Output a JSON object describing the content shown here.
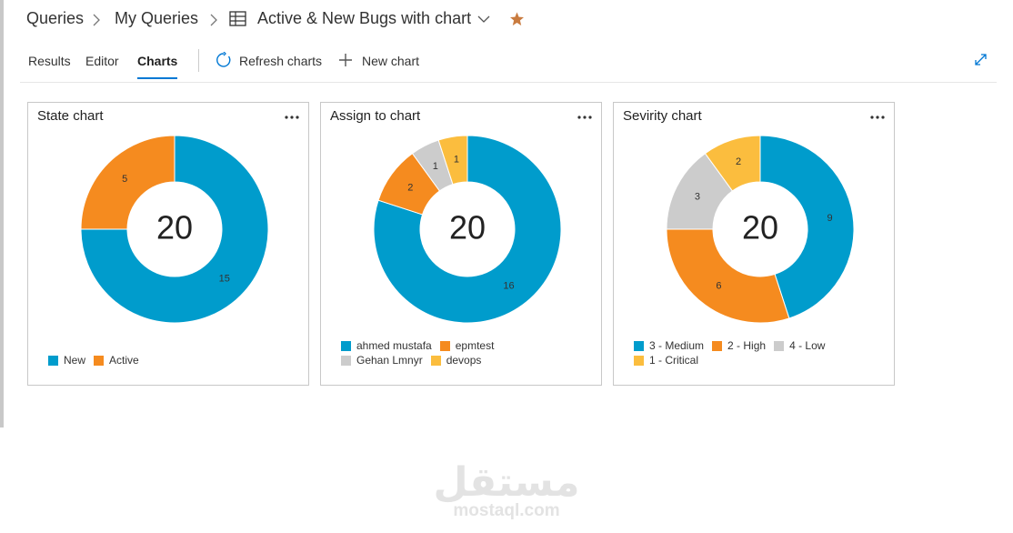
{
  "breadcrumb": {
    "root": "Queries",
    "folder": "My Queries",
    "query": "Active & New Bugs with chart"
  },
  "tabs": [
    "Results",
    "Editor",
    "Charts"
  ],
  "active_tab": 2,
  "toolbar": {
    "refresh": "Refresh charts",
    "new_chart": "New chart"
  },
  "charts": [
    {
      "type": "donut",
      "title": "State chart",
      "total": 20,
      "categories": [
        "New",
        "Active"
      ],
      "values": [
        15,
        5
      ],
      "colors": [
        "#009ccc",
        "#f58b1f"
      ]
    },
    {
      "type": "donut",
      "title": "Assign to chart",
      "total": 20,
      "categories": [
        "ahmed mustafa",
        "epmtest",
        "Gehan Lmnyr",
        "devops"
      ],
      "values": [
        16,
        2,
        1,
        1
      ],
      "colors": [
        "#009ccc",
        "#f58b1f",
        "#cccccc",
        "#fbbd3e"
      ]
    },
    {
      "type": "donut",
      "title": "Sevirity chart",
      "total": 20,
      "categories": [
        "3 - Medium",
        "2 - High",
        "4 - Low",
        "1 - Critical"
      ],
      "values": [
        9,
        6,
        3,
        2
      ],
      "colors": [
        "#009ccc",
        "#f58b1f",
        "#cccccc",
        "#fbbd3e"
      ]
    }
  ],
  "watermark": {
    "arabic": "مستقل",
    "latin": "mostaql.com"
  }
}
